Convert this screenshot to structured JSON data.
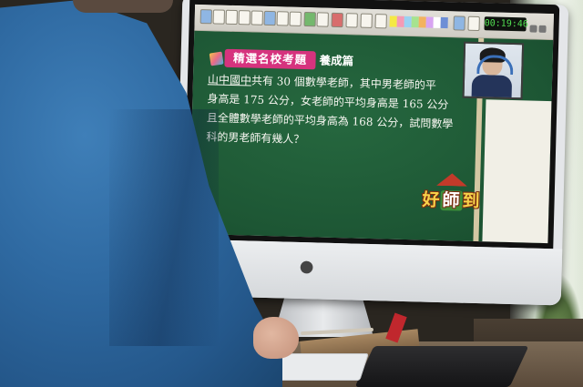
{
  "toolbar": {
    "clock": "00:19:46"
  },
  "header": {
    "badge": "精選名校考題",
    "suffix": "養成篇"
  },
  "problem": {
    "underlined": "山中國中",
    "line1_rest": "共有 30 個數學老師，其中男老師的平",
    "line2": "身高是 175 公分，女老師的平均身高是 165 公分",
    "line3": "且全體數學老師的平均身高為 168 公分，試問數學",
    "line4": "科的男老師有幾人？"
  },
  "logo": {
    "left": "好",
    "mid": "師",
    "right": "到"
  },
  "colors": {
    "board": "#1f5a38",
    "badge": "#d6337e",
    "shirt": "#2f6aa2"
  },
  "icons": [
    "apple-logo",
    "toolbar-icons",
    "webcam-feed"
  ]
}
